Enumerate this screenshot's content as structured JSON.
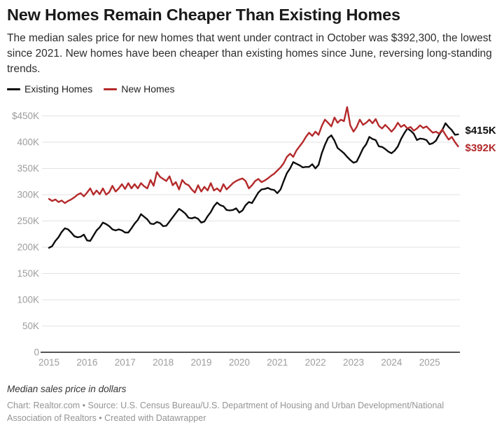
{
  "header": {
    "title": "New Homes Remain Cheaper Than Existing Homes",
    "subtitle": "The median sales price for new homes that went under contract in October was $392,300, the lowest since 2021. New homes have been cheaper than existing homes since June, reversing long-standing trends."
  },
  "footer": {
    "note": "Median sales price in dollars",
    "credit": "Chart: Realtor.com • Source: U.S. Census Bureau/U.S. Department of Housing and Urban Development/National Association of Realtors • Created with Datawrapper"
  },
  "chart_data": {
    "type": "line",
    "title": "New Homes Remain Cheaper Than Existing Homes",
    "x_unit": "month",
    "x_range": [
      "2015-01",
      "2025-10"
    ],
    "x_tick_labels": [
      "2015",
      "2016",
      "2017",
      "2018",
      "2019",
      "2020",
      "2021",
      "2022",
      "2023",
      "2024",
      "2025"
    ],
    "y_ticks": [
      {
        "label": "$450K",
        "v": 450
      },
      {
        "label": "400K",
        "v": 400
      },
      {
        "label": "350K",
        "v": 350
      },
      {
        "label": "300K",
        "v": 300
      },
      {
        "label": "250K",
        "v": 250
      },
      {
        "label": "200K",
        "v": 200
      },
      {
        "label": "150K",
        "v": 150
      },
      {
        "label": "100K",
        "v": 100
      },
      {
        "label": "50K",
        "v": 50
      },
      {
        "label": "0",
        "v": 0
      }
    ],
    "ylim": [
      0,
      470
    ],
    "grid": "horizontal",
    "legend_position": "top-left",
    "value_unit": "thousand dollars",
    "series": [
      {
        "name": "Existing Homes",
        "color": "#0d0d0d",
        "end_label": "$415K",
        "values": [
          199,
          202,
          212,
          219,
          229,
          236,
          234,
          228,
          221,
          219,
          220,
          224,
          213,
          212,
          222,
          232,
          238,
          247,
          244,
          240,
          234,
          232,
          234,
          232,
          228,
          228,
          236,
          245,
          252,
          263,
          258,
          253,
          245,
          244,
          248,
          246,
          240,
          241,
          249,
          257,
          265,
          273,
          269,
          264,
          256,
          255,
          257,
          254,
          247,
          249,
          259,
          267,
          278,
          285,
          280,
          278,
          271,
          270,
          271,
          274,
          266,
          270,
          280,
          286,
          284,
          294,
          304,
          310,
          311,
          313,
          310,
          309,
          303,
          310,
          326,
          341,
          350,
          362,
          359,
          356,
          352,
          353,
          353,
          358,
          350,
          357,
          379,
          395,
          408,
          413,
          403,
          389,
          384,
          379,
          372,
          366,
          361,
          363,
          375,
          388,
          396,
          410,
          406,
          404,
          392,
          391,
          387,
          382,
          379,
          384,
          392,
          406,
          417,
          426,
          422,
          416,
          404,
          407,
          406,
          404,
          396,
          398,
          403,
          414,
          423,
          436,
          429,
          423,
          414,
          415
        ]
      },
      {
        "name": "New Homes",
        "color": "#b42a2b",
        "end_label": "$392K",
        "values": [
          292,
          288,
          291,
          286,
          289,
          284,
          288,
          291,
          295,
          300,
          303,
          297,
          304,
          312,
          300,
          308,
          301,
          312,
          300,
          305,
          317,
          306,
          312,
          320,
          311,
          322,
          312,
          320,
          312,
          322,
          316,
          312,
          328,
          317,
          343,
          334,
          330,
          326,
          335,
          318,
          324,
          310,
          328,
          321,
          318,
          310,
          304,
          318,
          306,
          315,
          308,
          322,
          308,
          312,
          306,
          320,
          310,
          316,
          322,
          326,
          329,
          331,
          326,
          312,
          318,
          326,
          330,
          324,
          327,
          331,
          336,
          340,
          346,
          352,
          360,
          372,
          378,
          372,
          384,
          392,
          400,
          410,
          418,
          412,
          420,
          414,
          431,
          443,
          437,
          430,
          447,
          437,
          443,
          440,
          467,
          432,
          420,
          429,
          443,
          433,
          437,
          443,
          436,
          444,
          431,
          426,
          433,
          427,
          420,
          427,
          437,
          429,
          433,
          426,
          429,
          422,
          426,
          432,
          427,
          430,
          424,
          418,
          420,
          416,
          424,
          414,
          405,
          410,
          400,
          392
        ]
      }
    ]
  }
}
